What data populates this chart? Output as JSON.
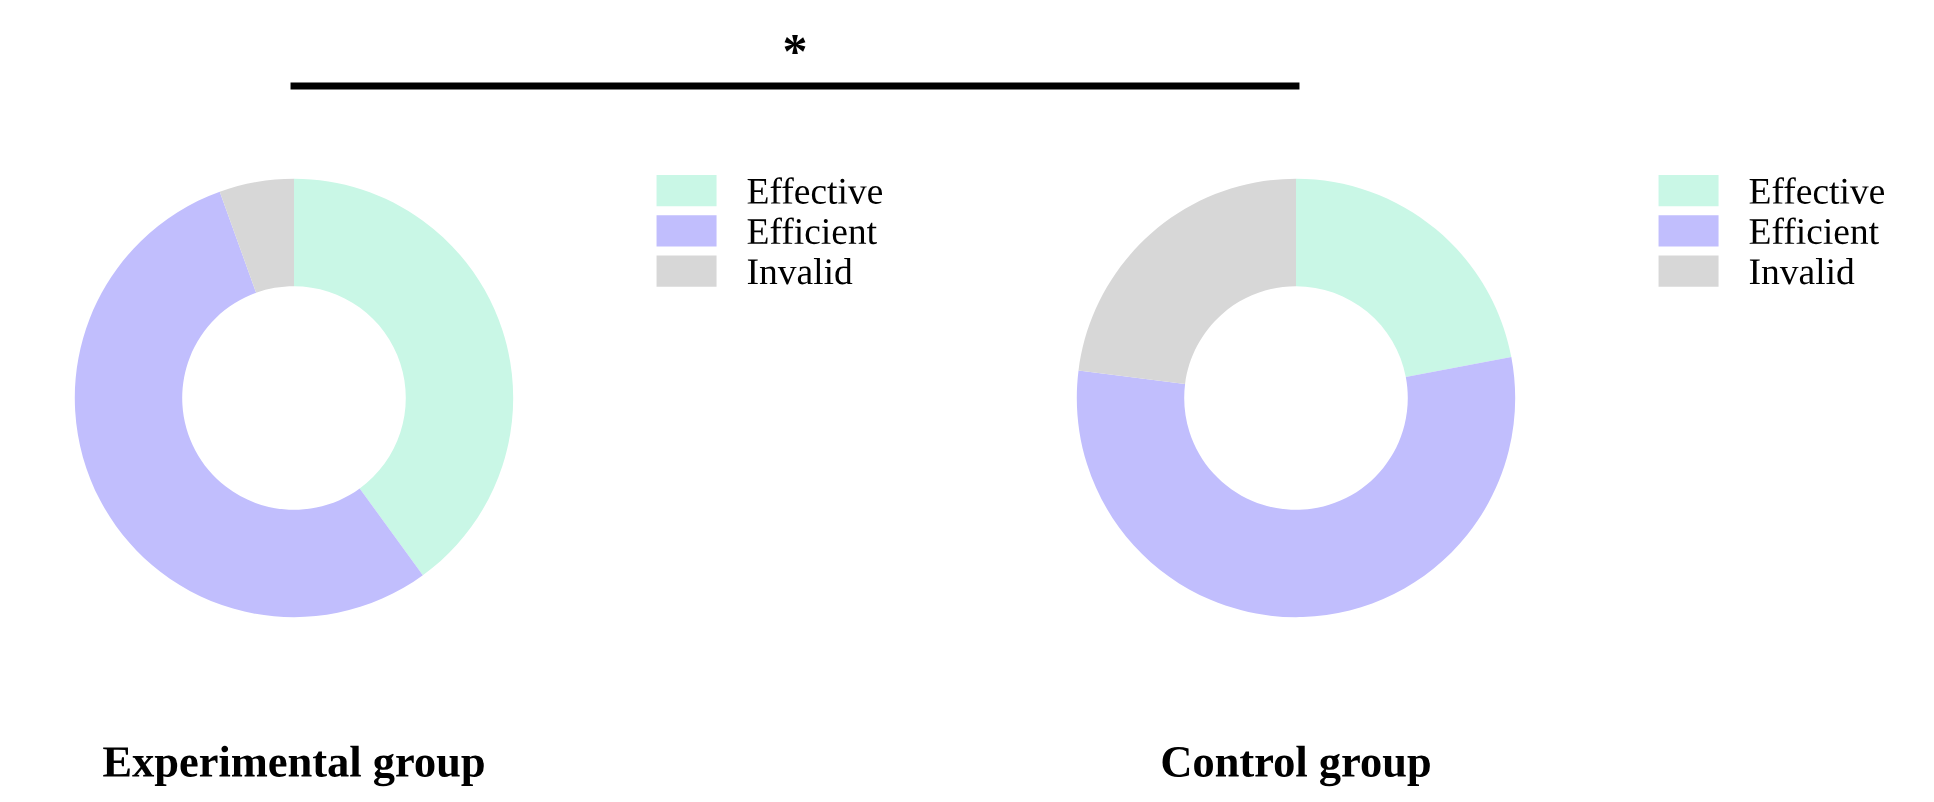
{
  "chart_data": [
    {
      "type": "donut",
      "title": "Experimental group",
      "categories": [
        "Effective",
        "Efficient",
        "Invalid"
      ],
      "values": [
        40,
        54.5,
        5.5
      ],
      "colors": [
        "#c9f7e6",
        "#c1befd",
        "#d7d7d7"
      ],
      "legend": "right",
      "annotations": [
        "*"
      ]
    },
    {
      "type": "donut",
      "title": "Control group",
      "categories": [
        "Effective",
        "Efficient",
        "Invalid"
      ],
      "values": [
        22,
        55,
        23
      ],
      "colors": [
        "#c9f7e6",
        "#c1befd",
        "#d7d7d7"
      ],
      "legend": "right"
    }
  ]
}
